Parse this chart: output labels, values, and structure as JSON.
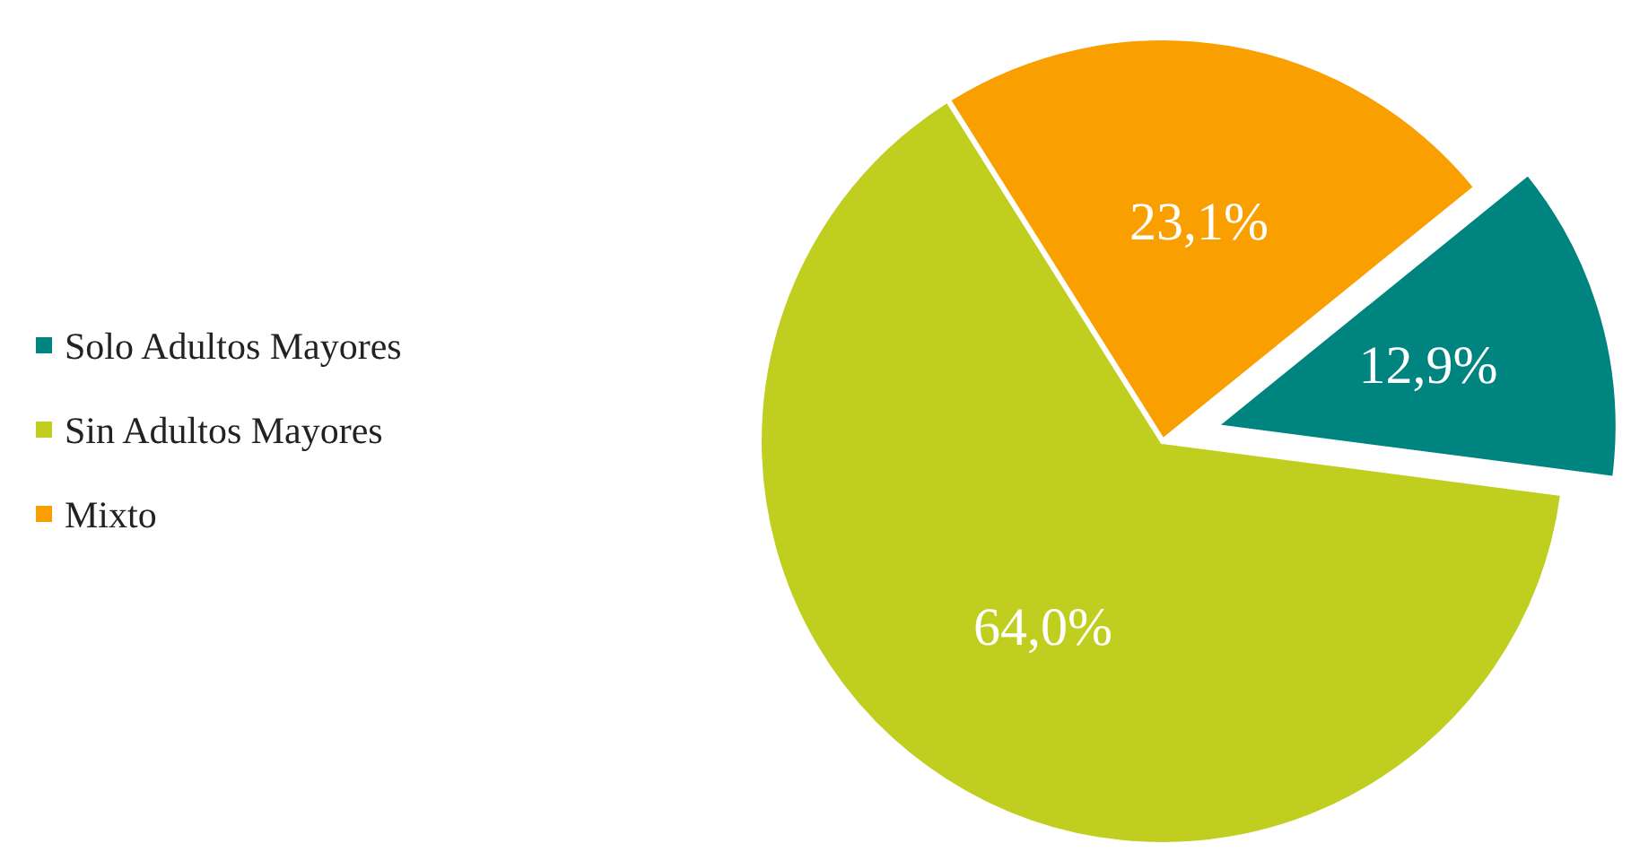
{
  "chart_data": {
    "type": "pie",
    "categories": [
      "Solo Adultos Mayores",
      "Sin Adultos Mayores",
      "Mixto"
    ],
    "values": [
      12.9,
      64.0,
      23.1
    ],
    "colors": [
      "#00847f",
      "#c0cf1f",
      "#f99f00"
    ],
    "value_labels": [
      "12,9%",
      "64,0%",
      "23,1%"
    ],
    "legend": "left"
  }
}
